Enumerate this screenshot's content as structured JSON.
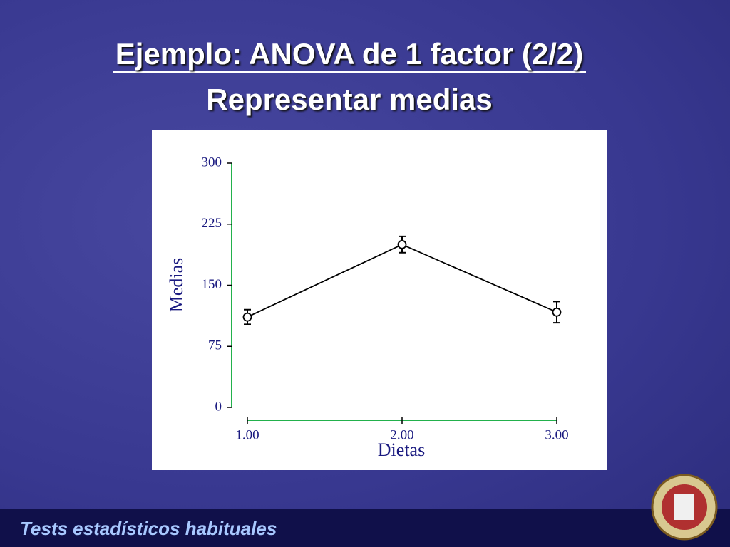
{
  "slide": {
    "title": "Ejemplo: ANOVA de 1 factor (2/2)",
    "subtitle": "Representar medias",
    "footer": "Tests estadísticos habituales"
  },
  "chart_data": {
    "type": "line",
    "x_label": "Dietas",
    "y_label": "Medias",
    "x": [
      1,
      2,
      3
    ],
    "values": [
      111,
      200,
      117
    ],
    "errors": [
      9,
      10,
      13
    ],
    "color": "#000000",
    "axis_color": "#22b14c",
    "xlim": [
      1,
      3
    ],
    "xticks": [
      {
        "value": 1,
        "label": "1.00"
      },
      {
        "value": 2,
        "label": "2.00"
      },
      {
        "value": 3,
        "label": "3.00"
      }
    ],
    "ylim": [
      0,
      300
    ],
    "yticks": [
      0,
      75,
      150,
      225,
      300
    ]
  }
}
